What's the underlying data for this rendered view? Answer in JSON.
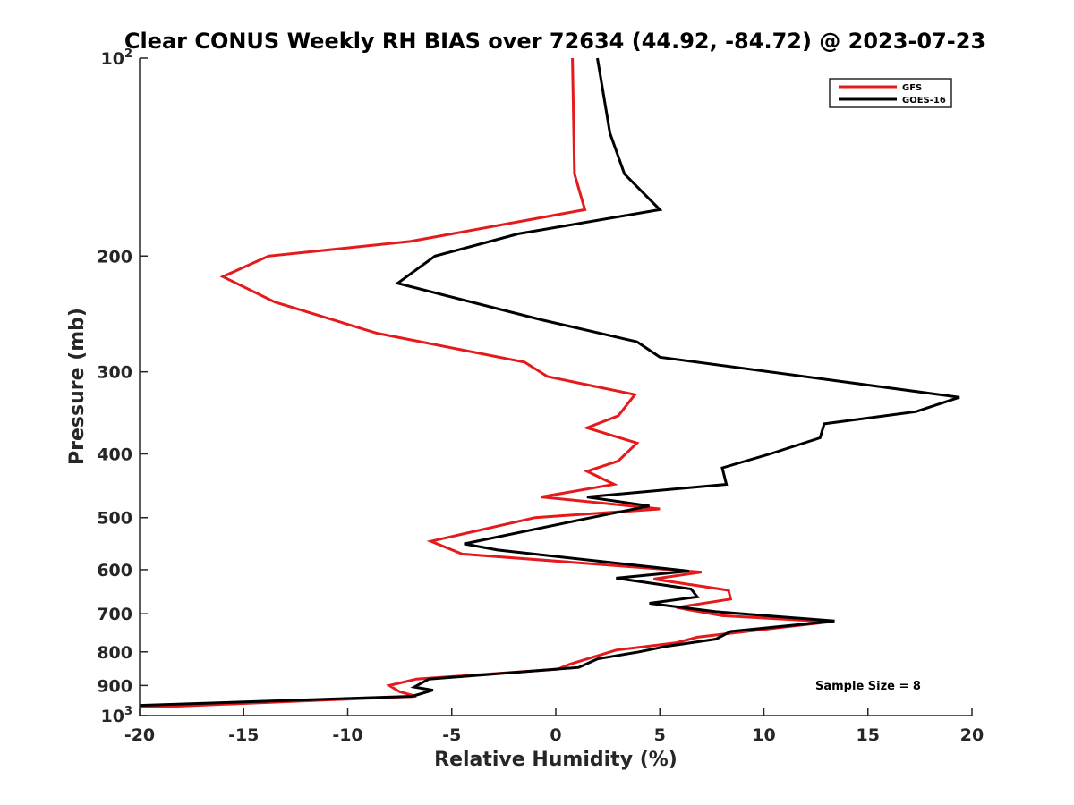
{
  "chart_data": {
    "type": "line",
    "title": "Clear CONUS Weekly RH BIAS over 72634 (44.92, -84.72) @ 2023-07-23",
    "xlabel": "Relative Humidity (%)",
    "ylabel": "Pressure (mb)",
    "xlim": [
      -20,
      20
    ],
    "ylim": [
      100,
      1000
    ],
    "yscale": "log",
    "y_reversed": true,
    "grid": false,
    "x_ticks": [
      -20,
      -15,
      -10,
      -5,
      0,
      5,
      10,
      15,
      20
    ],
    "x_tick_labels": [
      "-20",
      "-15",
      "-10",
      "-5",
      "0",
      "5",
      "10",
      "15",
      "20"
    ],
    "y_ticks": [
      100,
      200,
      300,
      400,
      500,
      600,
      700,
      800,
      900,
      1000
    ],
    "y_tick_labels": [
      {
        "base": "10",
        "exp": "2"
      },
      {
        "base": "200",
        "exp": ""
      },
      {
        "base": "300",
        "exp": ""
      },
      {
        "base": "400",
        "exp": ""
      },
      {
        "base": "500",
        "exp": ""
      },
      {
        "base": "600",
        "exp": ""
      },
      {
        "base": "700",
        "exp": ""
      },
      {
        "base": "800",
        "exp": ""
      },
      {
        "base": "900",
        "exp": ""
      },
      {
        "base": "10",
        "exp": "3"
      }
    ],
    "legend": {
      "position": "top-right",
      "entries": [
        {
          "name": "GFS",
          "color": "#e41a1c"
        },
        {
          "name": "GOES-16",
          "color": "#000000"
        }
      ]
    },
    "annotation": "Sample Size = 8",
    "series": [
      {
        "name": "GFS",
        "color": "#e41a1c",
        "points": [
          [
            0.8,
            100
          ],
          [
            0.9,
            150
          ],
          [
            1.4,
            170
          ],
          [
            -7,
            190
          ],
          [
            -13.8,
            200
          ],
          [
            -16,
            215
          ],
          [
            -13.5,
            235
          ],
          [
            -8.6,
            262
          ],
          [
            -1.5,
            290
          ],
          [
            -0.4,
            305
          ],
          [
            3.8,
            325
          ],
          [
            3,
            350
          ],
          [
            1.5,
            365
          ],
          [
            3.9,
            385
          ],
          [
            3,
            410
          ],
          [
            1.5,
            425
          ],
          [
            2.8,
            445
          ],
          [
            -0.7,
            465
          ],
          [
            5,
            485
          ],
          [
            -1,
            500
          ],
          [
            -6,
            543
          ],
          [
            -4.5,
            568
          ],
          [
            7,
            605
          ],
          [
            4.7,
            620
          ],
          [
            8.3,
            645
          ],
          [
            8.4,
            665
          ],
          [
            5.8,
            685
          ],
          [
            8,
            705
          ],
          [
            13.2,
            720
          ],
          [
            6.8,
            760
          ],
          [
            5.8,
            775
          ],
          [
            2.9,
            795
          ],
          [
            0.7,
            835
          ],
          [
            0.1,
            850
          ],
          [
            -6.7,
            880
          ],
          [
            -8,
            900
          ],
          [
            -7.5,
            920
          ],
          [
            -6.7,
            935
          ],
          [
            -19,
            970
          ],
          [
            -20,
            970
          ]
        ]
      },
      {
        "name": "GOES-16",
        "color": "#000000",
        "points": [
          [
            2,
            100
          ],
          [
            2.6,
            130
          ],
          [
            3.3,
            150
          ],
          [
            5,
            170
          ],
          [
            -1.8,
            185
          ],
          [
            -5.8,
            200
          ],
          [
            -7.6,
            220
          ],
          [
            -0.7,
            250
          ],
          [
            3.9,
            270
          ],
          [
            5,
            285
          ],
          [
            19.4,
            328
          ],
          [
            17.3,
            345
          ],
          [
            12.9,
            360
          ],
          [
            12.7,
            378
          ],
          [
            10.3,
            400
          ],
          [
            8,
            420
          ],
          [
            8.2,
            445
          ],
          [
            1.5,
            465
          ],
          [
            4.5,
            480
          ],
          [
            1.7,
            500
          ],
          [
            -4.4,
            548
          ],
          [
            -2.8,
            560
          ],
          [
            6.4,
            603
          ],
          [
            2.9,
            618
          ],
          [
            6.5,
            642
          ],
          [
            6.8,
            660
          ],
          [
            4.5,
            675
          ],
          [
            7.7,
            695
          ],
          [
            13.4,
            718
          ],
          [
            8.4,
            745
          ],
          [
            7.7,
            765
          ],
          [
            5.3,
            785
          ],
          [
            4,
            800
          ],
          [
            2,
            820
          ],
          [
            1.1,
            845
          ],
          [
            -6.1,
            880
          ],
          [
            -6.8,
            905
          ],
          [
            -5.9,
            915
          ],
          [
            -6.9,
            935
          ],
          [
            -20,
            965
          ]
        ]
      }
    ]
  }
}
